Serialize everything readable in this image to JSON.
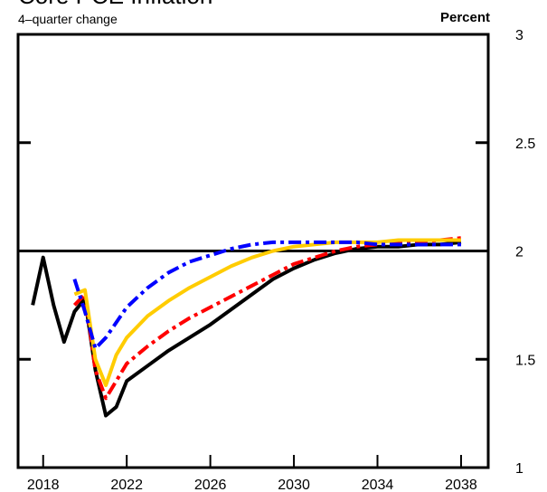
{
  "chart_data": {
    "type": "line",
    "title": "Core PCE Inflation",
    "subtitle": "4–quarter change",
    "y_label": "Percent",
    "x": [
      2017.5,
      2018,
      2018.5,
      2019,
      2019.5,
      2020,
      2020.5,
      2021,
      2021.5,
      2022,
      2023,
      2024,
      2025,
      2026,
      2027,
      2028,
      2029,
      2030,
      2031,
      2032,
      2033,
      2034,
      2035,
      2036,
      2037,
      2038
    ],
    "series": [
      {
        "color": "#000000",
        "dash": "solid",
        "values": [
          1.75,
          1.97,
          1.75,
          1.58,
          1.72,
          1.78,
          1.45,
          1.24,
          1.28,
          1.4,
          1.47,
          1.54,
          1.6,
          1.66,
          1.73,
          1.8,
          1.87,
          1.92,
          1.96,
          1.99,
          2.01,
          2.02,
          2.02,
          2.03,
          2.03,
          2.04
        ]
      },
      {
        "color": "#ff0000",
        "dash": "dashdot",
        "values": [
          null,
          null,
          null,
          null,
          1.75,
          1.8,
          1.45,
          1.32,
          1.4,
          1.48,
          1.56,
          1.63,
          1.69,
          1.74,
          1.79,
          1.84,
          1.89,
          1.94,
          1.97,
          2.0,
          2.02,
          2.03,
          2.04,
          2.04,
          2.05,
          2.06
        ]
      },
      {
        "color": "#ffcc00",
        "dash": "solid",
        "values": [
          null,
          null,
          null,
          null,
          1.8,
          1.82,
          1.5,
          1.38,
          1.52,
          1.6,
          1.7,
          1.77,
          1.83,
          1.88,
          1.93,
          1.97,
          2.0,
          2.02,
          2.03,
          2.04,
          2.04,
          2.04,
          2.05,
          2.05,
          2.05,
          2.05
        ]
      },
      {
        "color": "#0000ff",
        "dash": "dashdot",
        "values": [
          null,
          null,
          null,
          null,
          1.87,
          1.72,
          1.55,
          1.6,
          1.67,
          1.74,
          1.83,
          1.9,
          1.95,
          1.98,
          2.01,
          2.03,
          2.04,
          2.04,
          2.04,
          2.04,
          2.04,
          2.03,
          2.03,
          2.03,
          2.03,
          2.03
        ]
      }
    ],
    "hline": 2.0,
    "xlim": [
      2016.8,
      2039.3
    ],
    "xticks": [
      2018,
      2022,
      2026,
      2030,
      2034,
      2038
    ],
    "ylim": [
      1.0,
      3.0
    ],
    "yticks": [
      1.0,
      1.5,
      2.0,
      2.5,
      3.0
    ],
    "y_axis_side": "right"
  }
}
